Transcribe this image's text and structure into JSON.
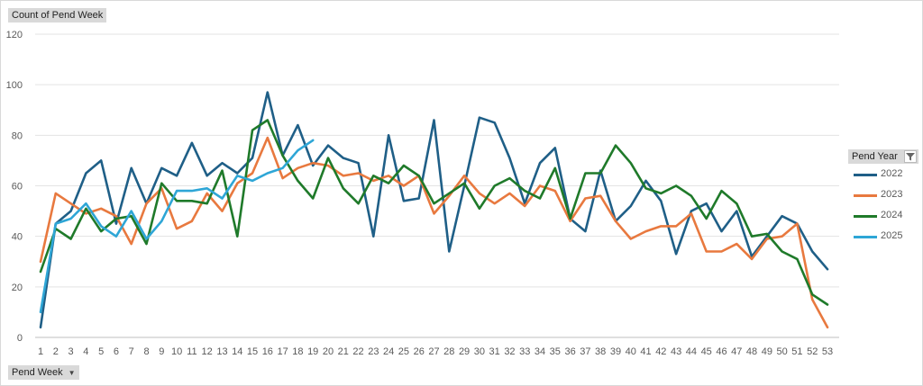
{
  "value_field_button": "Count of Pend Week",
  "axis_field_button": "Pend Week",
  "legend": {
    "title": "Pend Year"
  },
  "chart_data": {
    "type": "line",
    "title": "",
    "xlabel": "",
    "ylabel": "",
    "ylim": [
      0,
      120
    ],
    "yticks": [
      0,
      20,
      40,
      60,
      80,
      100,
      120
    ],
    "grid": true,
    "legend_position": "right",
    "x": [
      1,
      2,
      3,
      4,
      5,
      6,
      7,
      8,
      9,
      10,
      11,
      12,
      13,
      14,
      15,
      16,
      17,
      18,
      19,
      20,
      21,
      22,
      23,
      24,
      25,
      26,
      27,
      28,
      29,
      30,
      31,
      32,
      33,
      34,
      35,
      36,
      37,
      38,
      39,
      40,
      41,
      42,
      43,
      44,
      45,
      46,
      47,
      48,
      49,
      50,
      51,
      52,
      53
    ],
    "series": [
      {
        "name": "2022",
        "color": "#1f5f87",
        "values": [
          4,
          45,
          50,
          65,
          70,
          45,
          67,
          53,
          67,
          64,
          77,
          64,
          69,
          65,
          71,
          97,
          72,
          84,
          68,
          76,
          71,
          69,
          40,
          80,
          54,
          55,
          86,
          34,
          60,
          87,
          85,
          71,
          53,
          69,
          75,
          47,
          42,
          66,
          46,
          52,
          62,
          54,
          33,
          50,
          53,
          42,
          50,
          32,
          40,
          48,
          45,
          34,
          27
        ]
      },
      {
        "name": "2023",
        "color": "#e8793f",
        "values": [
          30,
          57,
          53,
          49,
          51,
          48,
          37,
          53,
          59,
          43,
          46,
          57,
          50,
          61,
          65,
          79,
          63,
          67,
          69,
          68,
          64,
          65,
          62,
          64,
          60,
          64,
          49,
          56,
          64,
          57,
          53,
          57,
          52,
          60,
          58,
          46,
          55,
          56,
          46,
          39,
          42,
          44,
          44,
          49,
          34,
          34,
          37,
          31,
          39,
          40,
          45,
          15,
          4
        ]
      },
      {
        "name": "2024",
        "color": "#1f7a2a",
        "values": [
          26,
          43,
          39,
          51,
          42,
          47,
          48,
          37,
          61,
          54,
          54,
          53,
          66,
          40,
          82,
          86,
          72,
          62,
          55,
          71,
          59,
          53,
          64,
          61,
          68,
          64,
          53,
          57,
          61,
          51,
          60,
          63,
          58,
          55,
          67,
          47,
          65,
          65,
          76,
          69,
          59,
          57,
          60,
          56,
          47,
          58,
          53,
          40,
          41,
          34,
          31,
          17,
          13
        ]
      },
      {
        "name": "2025",
        "color": "#2ea6d6",
        "values": [
          10,
          45,
          47,
          53,
          44,
          40,
          50,
          39,
          46,
          58,
          58,
          59,
          55,
          64,
          62,
          65,
          67,
          74,
          78,
          null,
          null,
          null,
          null,
          null,
          null,
          null,
          null,
          null,
          null,
          null,
          null,
          null,
          null,
          null,
          null,
          null,
          null,
          null,
          null,
          null,
          null,
          null,
          null,
          null,
          null,
          null,
          null,
          null,
          null,
          null,
          null,
          null,
          null
        ]
      }
    ]
  }
}
